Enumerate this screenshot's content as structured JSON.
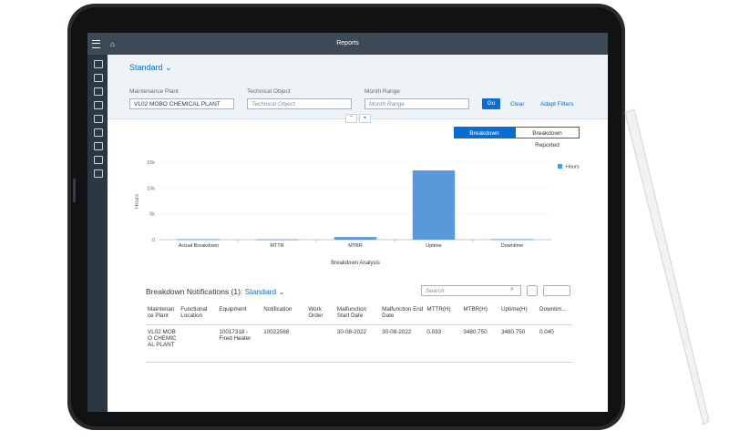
{
  "shell": {
    "title": "Reports"
  },
  "header": {
    "variant": "Standard",
    "filters": [
      {
        "label": "Maintenance Plant",
        "value": "VL02 MOBO CHEMICAL PLANT"
      },
      {
        "label": "Technical Object",
        "placeholder": "Technical Object"
      },
      {
        "label": "Month Range",
        "placeholder": "Month Range"
      }
    ],
    "go": "Go",
    "clear": "Clear",
    "adapt": "Adapt Filters"
  },
  "views": [
    "Breakdown Analysis",
    "Breakdown Reported"
  ],
  "chart_data": {
    "type": "bar",
    "categories": [
      "Actual Breakdown",
      "MTTR",
      "MTBR",
      "Uptime",
      "Downtime"
    ],
    "series": [
      {
        "name": "Hours",
        "color": "#5899da",
        "values": [
          100,
          50,
          500,
          13400,
          100
        ]
      }
    ],
    "ylabel": "Hours",
    "xlabel": "Breakdown Analysis",
    "ylim": [
      0,
      15000
    ],
    "yticks": [
      0,
      {
        "value": 5000,
        "label": "5k"
      },
      {
        "value": 10000,
        "label": "10k"
      },
      {
        "value": 15000,
        "label": "15k"
      }
    ],
    "grid": true,
    "legend": "top-right"
  },
  "table": {
    "title": "Breakdown Notifications (1)",
    "variant": "Standard",
    "search": "Search",
    "columns": [
      "Maintenance Plant",
      "Functional Location",
      "Equipment",
      "Notification",
      "Work Order",
      "Malfunction Start Date",
      "Malfunction End Date",
      "MTTR(H)",
      "MTBR(H)",
      "Uptime(H)",
      "Downtim..."
    ],
    "rows": [
      [
        "VL02 MOBO CHEMICAL PLANT",
        null,
        "10017318 - Fired Heater",
        "10022568",
        null,
        "30-08-2022",
        "30-08-2022",
        "0.033",
        "3480.750",
        "3480.750",
        "0.040"
      ]
    ]
  }
}
